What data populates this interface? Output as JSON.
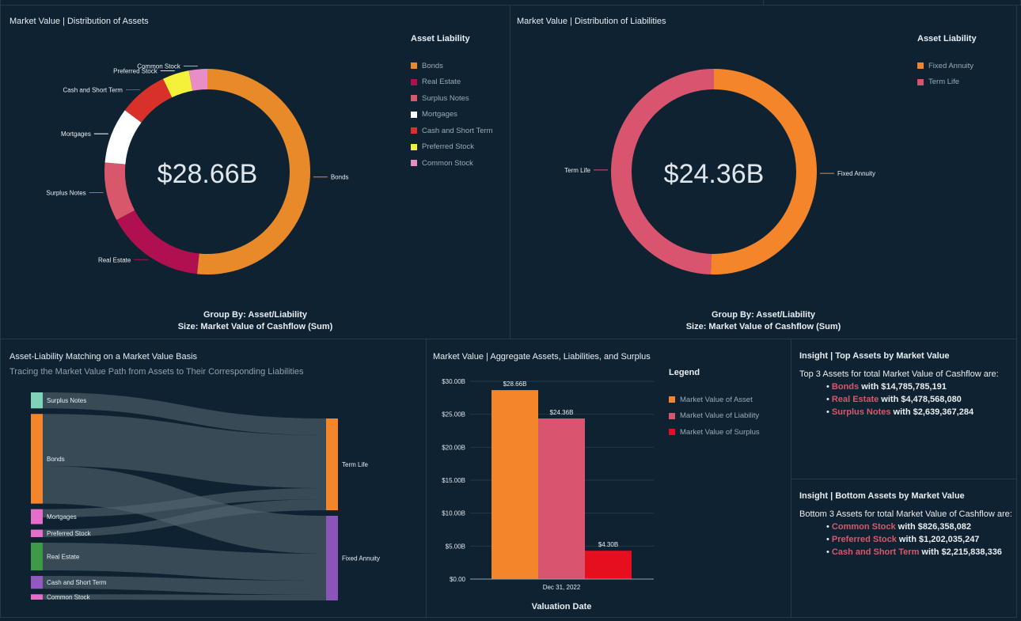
{
  "assets_panel": {
    "title": "Market Value | Distribution of Assets",
    "legend_title": "Asset Liability",
    "center_label": "$28.66B",
    "footer_line1": "Group By: Asset/Liability",
    "footer_line2": "Size: Market Value of Cashflow (Sum)"
  },
  "liabilities_panel": {
    "title": "Market Value | Distribution of Liabilities",
    "legend_title": "Asset Liability",
    "center_label": "$24.36B",
    "footer_line1": "Group By: Asset/Liability",
    "footer_line2": "Size: Market Value of Cashflow (Sum)"
  },
  "sankey_panel": {
    "title": "Asset-Liability Matching on a Market Value Basis",
    "subtitle": "Tracing the Market Value Path from Assets to Their Corresponding Liabilities"
  },
  "bar_panel": {
    "title": "Market Value | Aggregate Assets, Liabilities, and Surplus",
    "legend_title": "Legend"
  },
  "insight_top": {
    "title": "Insight | Top Assets by Market Value",
    "intro": "Top 3 Assets for total Market Value of Cashflow are:",
    "items": [
      {
        "name": "Bonds",
        "text": " with $14,785,785,191"
      },
      {
        "name": "Real Estate",
        "text": " with $4,478,568,080"
      },
      {
        "name": "Surplus Notes",
        "text": " with $2,639,367,284"
      }
    ]
  },
  "insight_bottom": {
    "title": "Insight | Bottom Assets by Market Value",
    "intro": "Bottom 3 Assets for total Market Value of Cashflow are:",
    "items": [
      {
        "name": "Common Stock",
        "text": " with $826,358,082"
      },
      {
        "name": "Preferred Stock",
        "text": " with $1,202,035,247"
      },
      {
        "name": "Cash and Short Term",
        "text": " with $2,215,838,336"
      }
    ]
  },
  "chart_data": [
    {
      "id": "assets_donut",
      "type": "pie",
      "variant": "donut",
      "title": "Market Value | Distribution of Assets",
      "total_label": "$28.66B",
      "legend_title": "Asset Liability",
      "legend_position": "top-right",
      "value_units": "USD billions",
      "slices": [
        {
          "label": "Bonds",
          "value": 14.786,
          "value_source": "printed in insight panel",
          "color": "#e8892a"
        },
        {
          "label": "Real Estate",
          "value": 4.479,
          "value_source": "printed in insight panel",
          "color": "#b0104f"
        },
        {
          "label": "Surplus Notes",
          "value": 2.639,
          "value_source": "printed in insight panel",
          "color": "#d9576b"
        },
        {
          "label": "Mortgages",
          "value": 2.51,
          "value_source": "derived: $28.66B total minus printed values",
          "color": "#ffffff"
        },
        {
          "label": "Cash and Short Term",
          "value": 2.216,
          "value_source": "printed in insight panel",
          "color": "#d8312a"
        },
        {
          "label": "Preferred Stock",
          "value": 1.202,
          "value_source": "printed in insight panel",
          "color": "#f5f03a"
        },
        {
          "label": "Common Stock",
          "value": 0.826,
          "value_source": "printed in insight panel",
          "color": "#e88dc5"
        }
      ],
      "legend_order": [
        "Bonds",
        "Real Estate",
        "Surplus Notes",
        "Mortgages",
        "Cash and Short Term",
        "Preferred Stock",
        "Common Stock"
      ]
    },
    {
      "id": "liabilities_donut",
      "type": "pie",
      "variant": "donut",
      "title": "Market Value | Distribution of Liabilities",
      "total_label": "$24.36B",
      "legend_title": "Asset Liability",
      "legend_position": "top-right",
      "value_units": "share of total (fraction)",
      "value_source": "estimated from arc geometry; not printed on screen",
      "slices": [
        {
          "label": "Fixed Annuity",
          "value": 0.505,
          "color": "#f5852b"
        },
        {
          "label": "Term Life",
          "value": 0.495,
          "color": "#d9546e"
        }
      ]
    },
    {
      "id": "asset_liability_sankey",
      "type": "sankey",
      "title": "Asset-Liability Matching on a Market Value Basis",
      "subtitle": "Tracing the Market Value Path from Assets to Their Corresponding Liabilities",
      "value_source": "node sizes and flow routing estimated from geometry; not printed on screen",
      "sources": [
        {
          "label": "Surplus Notes",
          "color": "#7fd3b8",
          "share": 0.075
        },
        {
          "label": "Bonds",
          "color": "#f5852b",
          "share": 0.42
        },
        {
          "label": "Mortgages",
          "color": "#e36fcb",
          "share": 0.07
        },
        {
          "label": "Preferred Stock",
          "color": "#e36fcb",
          "share": 0.035
        },
        {
          "label": "Real Estate",
          "color": "#3f9a47",
          "share": 0.13
        },
        {
          "label": "Cash and Short Term",
          "color": "#9259c1",
          "share": 0.06
        },
        {
          "label": "Common Stock",
          "color": "#e36fcb",
          "share": 0.025
        }
      ],
      "targets": [
        {
          "label": "Term Life",
          "color": "#f5852b"
        },
        {
          "label": "Fixed Annuity",
          "color": "#8a54b8"
        }
      ],
      "flows": [
        {
          "from": "Surplus Notes",
          "to": "Term Life"
        },
        {
          "from": "Bonds",
          "to": "Term Life"
        },
        {
          "from": "Bonds",
          "to": "Fixed Annuity"
        },
        {
          "from": "Mortgages",
          "to": "Term Life"
        },
        {
          "from": "Preferred Stock",
          "to": "Term Life"
        },
        {
          "from": "Real Estate",
          "to": "Fixed Annuity"
        },
        {
          "from": "Cash and Short Term",
          "to": "Fixed Annuity"
        },
        {
          "from": "Common Stock",
          "to": "Fixed Annuity"
        }
      ]
    },
    {
      "id": "aggregate_bar",
      "type": "bar",
      "title": "Market Value | Aggregate Assets, Liabilities, and Surplus",
      "categories": [
        "Dec 31, 2022"
      ],
      "xlabel": "Valuation Date",
      "ylabel": "",
      "ylim": [
        0,
        30
      ],
      "y_units": "USD billions",
      "yticks": [
        "$0.00",
        "$5.00B",
        "$10.00B",
        "$15.00B",
        "$20.00B",
        "$25.00B",
        "$30.00B"
      ],
      "grid": true,
      "legend_title": "Legend",
      "legend_position": "right",
      "series": [
        {
          "name": "Market Value of Asset",
          "values": [
            28.66
          ],
          "label": "$28.66B",
          "color": "#f5852b"
        },
        {
          "name": "Market Value of Liability",
          "values": [
            24.36
          ],
          "label": "$24.36B",
          "color": "#d9546e"
        },
        {
          "name": "Market Value of Surplus",
          "values": [
            4.3
          ],
          "label": "$4.30B",
          "color": "#e50f1f"
        }
      ]
    }
  ]
}
